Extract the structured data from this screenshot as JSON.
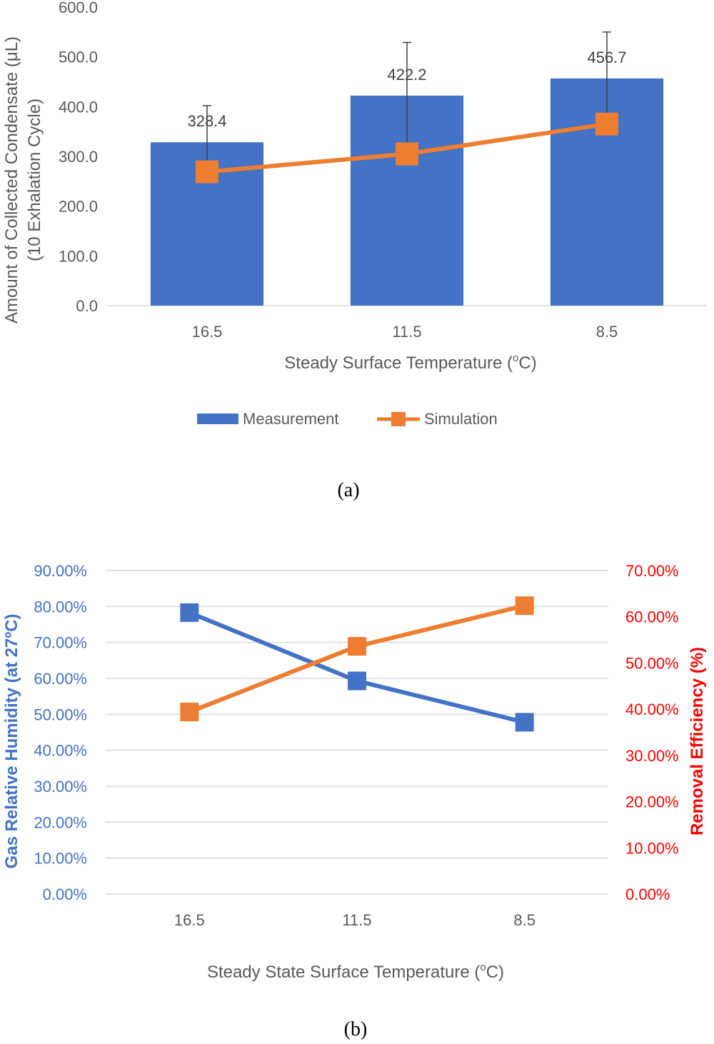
{
  "colors": {
    "measurement_bar": "#4472C4",
    "simulation_line": "#ED7D31",
    "humidity_line": "#4472C4",
    "efficiency_line": "#ED7D31",
    "left_axis_text_b": "#4472C4",
    "right_axis_text_b": "#FF0000",
    "axis_text": "#595959",
    "gridline": "#D9D9D9",
    "error_bar": "#404040"
  },
  "chart_data": [
    {
      "type": "bar",
      "panel_label": "(a)",
      "categories": [
        "16.5",
        "11.5",
        "8.5"
      ],
      "xlabel": "Steady Surface Temperature (",
      "xlabel_sup": "o",
      "xlabel_end": "C)",
      "ylabel_line1": "Amount of Collected Condensate (μL)",
      "ylabel_line2": "(10 Exhalation Cycle)",
      "ylim": [
        0,
        600
      ],
      "yticks": [
        "0.0",
        "100.0",
        "200.0",
        "300.0",
        "400.0",
        "500.0",
        "600.0"
      ],
      "grid": false,
      "legend_position": "bottom",
      "series": [
        {
          "name": "Measurement",
          "kind": "bar",
          "values": [
            328.4,
            422.2,
            456.7
          ],
          "data_labels": [
            "328.4",
            "422.2",
            "456.7"
          ],
          "error_upper": [
            402,
            529,
            550
          ]
        },
        {
          "name": "Simulation",
          "kind": "line",
          "marker": "square",
          "values": [
            269,
            305,
            365
          ]
        }
      ]
    },
    {
      "type": "line",
      "panel_label": "(b)",
      "categories": [
        "16.5",
        "11.5",
        "8.5"
      ],
      "xlabel": "Steady State Surface Temperature (",
      "xlabel_sup": "o",
      "xlabel_end": "C)",
      "ylabel_left": "Gas Relative Humidity (at 27ºC)",
      "ylabel_right": "Removal Efficiency (%)",
      "ylim_left": [
        0,
        0.9
      ],
      "yticks_left": [
        "0.00%",
        "10.00%",
        "20.00%",
        "30.00%",
        "40.00%",
        "50.00%",
        "60.00%",
        "70.00%",
        "80.00%",
        "90.00%"
      ],
      "ylim_right": [
        0,
        0.7
      ],
      "yticks_right": [
        "0.00%",
        "10.00%",
        "20.00%",
        "30.00%",
        "40.00%",
        "50.00%",
        "60.00%",
        "70.00%"
      ],
      "grid": true,
      "series": [
        {
          "axis": "left",
          "marker": "square",
          "values": [
            0.783,
            0.593,
            0.478
          ]
        },
        {
          "axis": "right",
          "marker": "square",
          "values": [
            0.394,
            0.536,
            0.624
          ]
        }
      ]
    }
  ]
}
